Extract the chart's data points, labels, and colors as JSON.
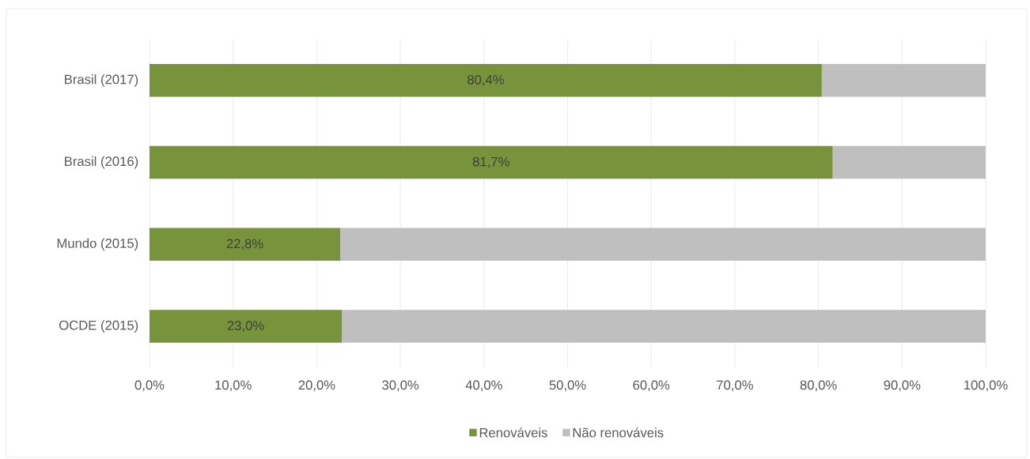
{
  "chart_data": {
    "type": "bar",
    "orientation": "horizontal",
    "stacked": true,
    "categories": [
      "Brasil (2017)",
      "Brasil (2016)",
      "Mundo (2015)",
      "OCDE (2015)"
    ],
    "series": [
      {
        "name": "Renováveis",
        "color": "#77933c",
        "values": [
          80.4,
          81.7,
          22.8,
          23.0
        ],
        "value_labels": [
          "80,4%",
          "81,7%",
          "22,8%",
          "23,0%"
        ]
      },
      {
        "name": "Não renováveis",
        "color": "#bfbfbf",
        "values": [
          19.6,
          18.3,
          77.2,
          77.0
        ]
      }
    ],
    "xlim": [
      0,
      100
    ],
    "xticks": [
      {
        "value": 0,
        "label": "0,0%"
      },
      {
        "value": 10,
        "label": "10,0%"
      },
      {
        "value": 20,
        "label": "20,0%"
      },
      {
        "value": 30,
        "label": "30,0%"
      },
      {
        "value": 40,
        "label": "40,0%"
      },
      {
        "value": 50,
        "label": "50,0%"
      },
      {
        "value": 60,
        "label": "60,0%"
      },
      {
        "value": 70,
        "label": "70,0%"
      },
      {
        "value": 80,
        "label": "80,0%"
      },
      {
        "value": 90,
        "label": "90,0%"
      },
      {
        "value": 100,
        "label": "100,0%"
      }
    ],
    "grid": "x",
    "legend": "bottom"
  }
}
